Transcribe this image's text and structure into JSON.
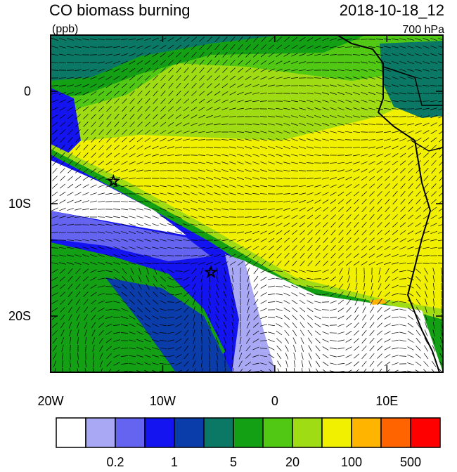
{
  "title": "CO biomass burning",
  "units": "(ppb)",
  "date": "2018-10-18_12",
  "level": "700 hPa",
  "map": {
    "lonlim": [
      -20,
      15
    ],
    "latlim": [
      -25,
      5
    ],
    "lonticks": [
      {
        "value": -20,
        "label": "20W"
      },
      {
        "value": -10,
        "label": "10W"
      },
      0,
      {
        "value": 10,
        "label": "10E"
      }
    ],
    "latticks": [
      0,
      {
        "value": -10,
        "label": "10S"
      },
      {
        "value": -20,
        "label": "20S"
      }
    ],
    "markers": [
      {
        "lon": -14.4,
        "lat": -8
      },
      {
        "lon": -5.7,
        "lat": -16.1
      }
    ]
  },
  "colorbar": {
    "colors": [
      "#ffffff",
      "#a8a8f4",
      "#6464f0",
      "#1414f0",
      "#0a3caa",
      "#0a7864",
      "#14a014",
      "#50c814",
      "#a0dc14",
      "#f0f000",
      "#ffb400",
      "#ff6400",
      "#ff0000"
    ],
    "labels": [
      0.2,
      1,
      5,
      20,
      100,
      500
    ]
  }
}
